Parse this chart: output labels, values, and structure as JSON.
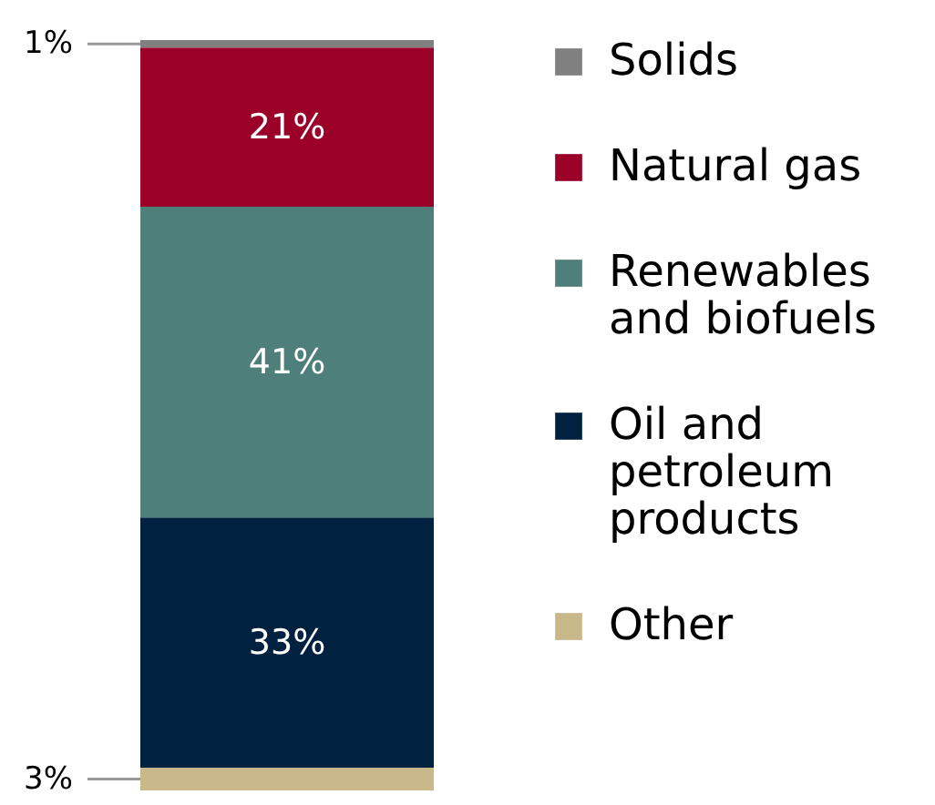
{
  "chart_data": {
    "type": "bar",
    "stacked": true,
    "categories": [
      null
    ],
    "legend": "right",
    "series": [
      {
        "name": "Other",
        "color": "#c9b98a",
        "values": [
          3
        ],
        "value_labels": [
          "3%"
        ]
      },
      {
        "name": "Oil and petroleum products",
        "color": "#00213f",
        "values": [
          33
        ],
        "value_labels": [
          "33%"
        ]
      },
      {
        "name": "Renewables and biofuels",
        "color": "#4e7f7a",
        "values": [
          41
        ],
        "value_labels": [
          "41%"
        ]
      },
      {
        "name": "Natural gas",
        "color": "#9b0029",
        "values": [
          21
        ],
        "value_labels": [
          "21%"
        ]
      },
      {
        "name": "Solids",
        "color": "#808080",
        "values": [
          1
        ],
        "value_labels": [
          "1%"
        ]
      }
    ]
  }
}
